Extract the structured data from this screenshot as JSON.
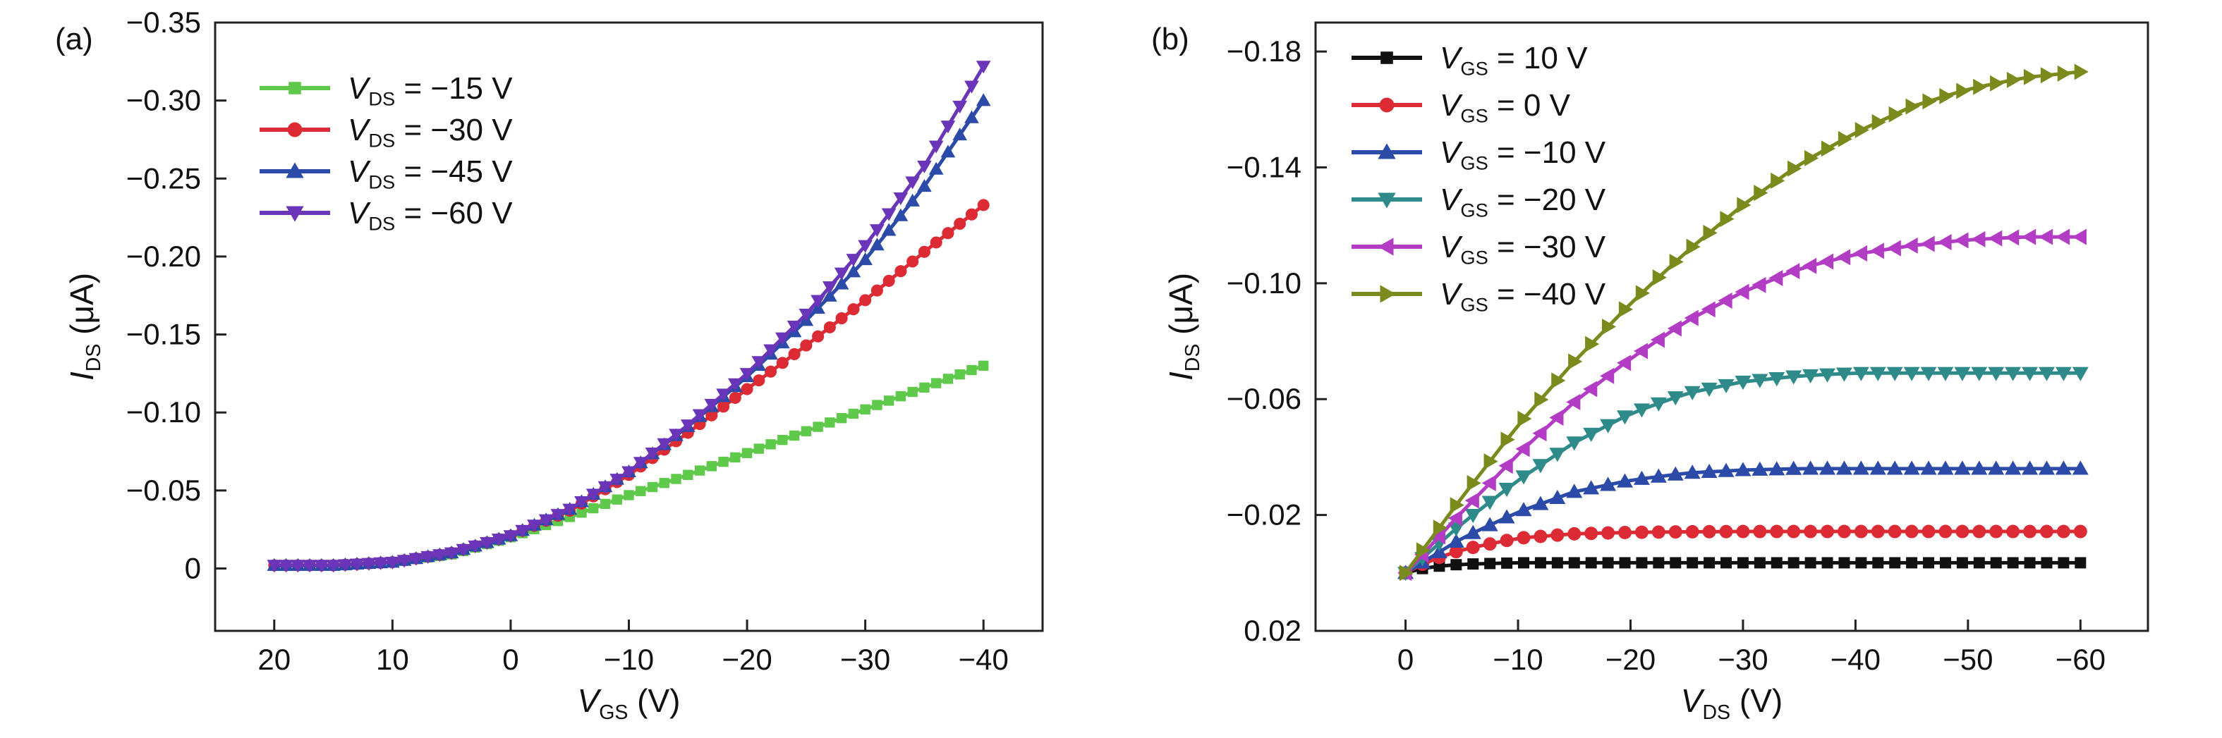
{
  "colors": {
    "green": "#5ec94a",
    "red": "#dd2b35",
    "blue": "#2c4aa8",
    "purple": "#6a35b8",
    "black": "#111111",
    "teal": "#2f8a8a",
    "magenta": "#b33cc4",
    "olive": "#7a8a1c"
  },
  "chart_data": [
    {
      "panel_label": "(a)",
      "type": "line",
      "xlabel": "V",
      "xlabel_sub": "GS",
      "xlabel_unit": "(V)",
      "ylabel": "I",
      "ylabel_sub": "DS",
      "ylabel_unit": "(μA)",
      "xlim": [
        25,
        -45
      ],
      "ylim": [
        0.04,
        -0.35
      ],
      "xticks": [
        20,
        10,
        0,
        -10,
        -20,
        -30,
        -40
      ],
      "xtick_labels": [
        "20",
        "10",
        "0",
        "−10",
        "−20",
        "−30",
        "−40"
      ],
      "yticks": [
        0,
        -0.05,
        -0.1,
        -0.15,
        -0.2,
        -0.25,
        -0.3,
        -0.35
      ],
      "ytick_labels": [
        "0",
        "−0.05",
        "−0.10",
        "−0.15",
        "−0.20",
        "−0.25",
        "−0.30",
        "−0.35"
      ],
      "legend": "top-left",
      "series": [
        {
          "name_main": "V",
          "name_sub": "DS",
          "name_value": " = −15 V",
          "color": "green",
          "marker": "square",
          "x": [
            20,
            15,
            10,
            5,
            0,
            -5,
            -10,
            -15,
            -20,
            -25,
            -30,
            -35,
            -40
          ],
          "y": [
            -0.002,
            -0.002,
            -0.004,
            -0.009,
            -0.02,
            -0.033,
            -0.047,
            -0.06,
            -0.074,
            -0.088,
            -0.102,
            -0.116,
            -0.13
          ]
        },
        {
          "name_main": "V",
          "name_sub": "DS",
          "name_value": " = −30 V",
          "color": "red",
          "marker": "circle",
          "x": [
            20,
            15,
            10,
            5,
            0,
            -5,
            -10,
            -15,
            -20,
            -25,
            -30,
            -35,
            -40
          ],
          "y": [
            -0.002,
            -0.002,
            -0.004,
            -0.01,
            -0.021,
            -0.037,
            -0.06,
            -0.087,
            -0.115,
            -0.143,
            -0.172,
            -0.203,
            -0.233
          ]
        },
        {
          "name_main": "V",
          "name_sub": "DS",
          "name_value": " = −45 V",
          "color": "blue",
          "marker": "triangle-up",
          "x": [
            20,
            15,
            10,
            5,
            0,
            -5,
            -10,
            -15,
            -20,
            -25,
            -30,
            -35,
            -40
          ],
          "y": [
            -0.002,
            -0.002,
            -0.004,
            -0.01,
            -0.021,
            -0.038,
            -0.062,
            -0.091,
            -0.123,
            -0.159,
            -0.198,
            -0.245,
            -0.3
          ]
        },
        {
          "name_main": "V",
          "name_sub": "DS",
          "name_value": " = −60 V",
          "color": "purple",
          "marker": "triangle-down",
          "x": [
            20,
            15,
            10,
            5,
            0,
            -5,
            -10,
            -15,
            -20,
            -25,
            -30,
            -35,
            -40
          ],
          "y": [
            -0.002,
            -0.002,
            -0.004,
            -0.01,
            -0.021,
            -0.038,
            -0.062,
            -0.092,
            -0.125,
            -0.163,
            -0.207,
            -0.258,
            -0.322
          ]
        }
      ]
    },
    {
      "panel_label": "(b)",
      "type": "line",
      "xlabel": "V",
      "xlabel_sub": "DS",
      "xlabel_unit": "(V)",
      "ylabel": "I",
      "ylabel_sub": "DS",
      "ylabel_unit": "(μA)",
      "xlim": [
        8,
        -66
      ],
      "ylim": [
        0.02,
        -0.19
      ],
      "xticks": [
        0,
        -10,
        -20,
        -30,
        -40,
        -50,
        -60
      ],
      "xtick_labels": [
        "0",
        "−10",
        "−20",
        "−30",
        "−40",
        "−50",
        "−60"
      ],
      "yticks": [
        0.02,
        -0.02,
        -0.06,
        -0.1,
        -0.14,
        -0.18
      ],
      "ytick_labels": [
        "0.02",
        "−0.02",
        "−0.06",
        "−0.10",
        "−0.14",
        "−0.18"
      ],
      "legend": "top-left",
      "series": [
        {
          "name_main": "V",
          "name_sub": "GS",
          "name_value": " = 10 V",
          "color": "black",
          "marker": "square",
          "x": [
            0,
            -2,
            -5,
            -10,
            -15,
            -20,
            -30,
            -40,
            -50,
            -60
          ],
          "y": [
            0,
            -0.002,
            -0.003,
            -0.0035,
            -0.0035,
            -0.0035,
            -0.0035,
            -0.0035,
            -0.0035,
            -0.0035
          ]
        },
        {
          "name_main": "V",
          "name_sub": "GS",
          "name_value": " = 0 V",
          "color": "red",
          "marker": "circle",
          "x": [
            0,
            -2,
            -5,
            -10,
            -15,
            -20,
            -25,
            -30,
            -40,
            -50,
            -60
          ],
          "y": [
            0,
            -0.004,
            -0.008,
            -0.012,
            -0.0135,
            -0.014,
            -0.0142,
            -0.0143,
            -0.0143,
            -0.0143,
            -0.0143
          ]
        },
        {
          "name_main": "V",
          "name_sub": "GS",
          "name_value": " = −10 V",
          "color": "blue",
          "marker": "triangle-up",
          "x": [
            0,
            -5,
            -10,
            -15,
            -20,
            -25,
            -30,
            -35,
            -40,
            -50,
            -60
          ],
          "y": [
            0,
            -0.012,
            -0.021,
            -0.028,
            -0.032,
            -0.0345,
            -0.0355,
            -0.036,
            -0.036,
            -0.036,
            -0.036
          ]
        },
        {
          "name_main": "V",
          "name_sub": "GS",
          "name_value": " = −20 V",
          "color": "teal",
          "marker": "triangle-down",
          "x": [
            0,
            -5,
            -10,
            -15,
            -20,
            -25,
            -30,
            -35,
            -40,
            -50,
            -60
          ],
          "y": [
            0,
            -0.017,
            -0.032,
            -0.045,
            -0.055,
            -0.062,
            -0.066,
            -0.068,
            -0.069,
            -0.069,
            -0.069
          ]
        },
        {
          "name_main": "V",
          "name_sub": "GS",
          "name_value": " = −30 V",
          "color": "magenta",
          "marker": "triangle-left",
          "x": [
            0,
            -5,
            -10,
            -15,
            -20,
            -25,
            -30,
            -35,
            -40,
            -45,
            -50,
            -55,
            -60
          ],
          "y": [
            0,
            -0.021,
            -0.041,
            -0.059,
            -0.074,
            -0.087,
            -0.097,
            -0.105,
            -0.11,
            -0.113,
            -0.115,
            -0.116,
            -0.116
          ]
        },
        {
          "name_main": "V",
          "name_sub": "GS",
          "name_value": " = −40 V",
          "color": "olive",
          "marker": "triangle-right",
          "x": [
            0,
            -5,
            -10,
            -15,
            -20,
            -25,
            -30,
            -35,
            -40,
            -45,
            -50,
            -55,
            -60
          ],
          "y": [
            0,
            -0.026,
            -0.051,
            -0.073,
            -0.093,
            -0.111,
            -0.127,
            -0.141,
            -0.152,
            -0.161,
            -0.167,
            -0.171,
            -0.173
          ]
        }
      ]
    }
  ]
}
